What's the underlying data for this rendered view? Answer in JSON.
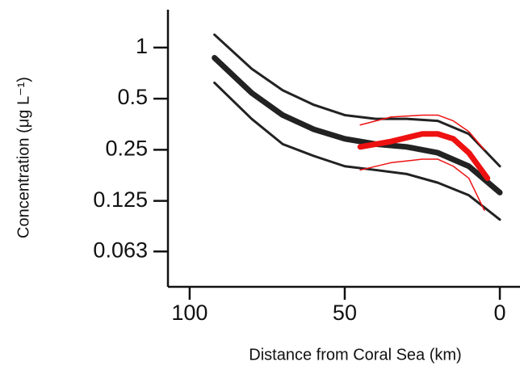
{
  "chart_data": {
    "type": "line",
    "xlabel": "Distance from Coral Sea (km)",
    "ylabel": "Concentration (μg L⁻¹)",
    "xlim": [
      107,
      -6.5
    ],
    "xticks": [
      100,
      50,
      0
    ],
    "ylim": [
      0.039,
      1.67
    ],
    "ylog": true,
    "yticks": [
      1,
      0.5,
      0.25,
      0.125,
      0.063
    ],
    "series": [
      {
        "color": "#222222",
        "width": 3,
        "x": [
          92,
          80,
          70,
          60,
          50,
          40,
          30,
          20,
          10,
          0
        ],
        "values": [
          1.19,
          0.75,
          0.56,
          0.46,
          0.4,
          0.38,
          0.38,
          0.37,
          0.31,
          0.2
        ]
      },
      {
        "color": "#222222",
        "width": 7,
        "x": [
          92,
          80,
          70,
          60,
          50,
          40,
          30,
          20,
          10,
          0
        ],
        "values": [
          0.87,
          0.54,
          0.4,
          0.33,
          0.29,
          0.27,
          0.26,
          0.24,
          0.2,
          0.14
        ]
      },
      {
        "color": "#222222",
        "width": 3,
        "x": [
          92,
          80,
          70,
          60,
          50,
          40,
          30,
          20,
          10,
          0
        ],
        "values": [
          0.62,
          0.38,
          0.27,
          0.23,
          0.2,
          0.19,
          0.18,
          0.16,
          0.135,
          0.097
        ]
      },
      {
        "color": "#ee1111",
        "width": 1.5,
        "x": [
          45,
          35,
          25,
          20,
          15,
          10,
          5
        ],
        "values": [
          0.35,
          0.39,
          0.4,
          0.4,
          0.37,
          0.32,
          0.25
        ]
      },
      {
        "color": "#ee1111",
        "width": 7,
        "x": [
          45,
          35,
          25,
          20,
          15,
          10,
          4
        ],
        "values": [
          0.26,
          0.28,
          0.31,
          0.31,
          0.29,
          0.24,
          0.17
        ]
      },
      {
        "color": "#ee1111",
        "width": 1.5,
        "x": [
          45,
          35,
          25,
          20,
          15,
          10,
          5
        ],
        "values": [
          0.19,
          0.21,
          0.22,
          0.22,
          0.2,
          0.17,
          0.11
        ]
      }
    ]
  }
}
